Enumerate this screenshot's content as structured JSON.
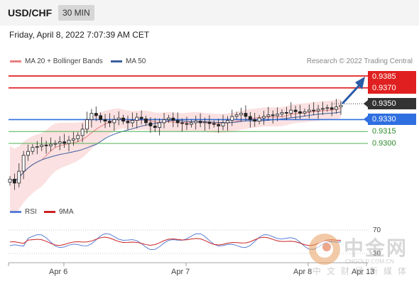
{
  "header": {
    "pair": "USD/CHF",
    "timeframe": "30 MIN"
  },
  "datetime": "Friday, April 8, 2022 7:07:39 AM CET",
  "legend": {
    "bollinger_label": "MA 20 + Bollinger Bands",
    "ma50_label": "MA 50",
    "research": "Research © 2022 Trading Central"
  },
  "colors": {
    "resistance": "#e02020",
    "current": "#333333",
    "pivot": "#2f6fe0",
    "support": "#4caf50",
    "ma20": "#e88080",
    "ma50": "#3a5fa0",
    "rsi": "#5b7fd6",
    "rsi_ma": "#cc2222"
  },
  "levels": {
    "r2": "0.9385",
    "r1": "0.9370",
    "last": "0.9350",
    "pivot": "0.9330",
    "s1": "0.9315",
    "s2": "0.9300"
  },
  "rsi": {
    "label": "RSI",
    "ma_label": "9MA",
    "level_70": "70",
    "level_30": "30"
  },
  "xaxis": {
    "labels": [
      "Apr 6",
      "Apr 7",
      "Apr 8",
      "Apr 13"
    ]
  },
  "watermark": {
    "cn": "中金网",
    "url": "CNGOLD.COM.CN",
    "sub": "中文财经新媒体",
    "logo": "cngold-logo-icon"
  },
  "chart_data": {
    "type": "line",
    "title": "",
    "ylabel": "",
    "ylim": [
      0.924,
      0.9395
    ],
    "y_levels": [
      0.9385,
      0.937,
      0.935,
      0.933,
      0.9315,
      0.93
    ],
    "x_labels": [
      "Apr 6",
      "Apr 7",
      "Apr 8",
      "Apr 13"
    ],
    "series": [
      {
        "values": [
          0.9255,
          0.925,
          0.9265,
          0.9285,
          0.929,
          0.9295,
          0.9296,
          0.9298,
          0.9297,
          0.9299,
          0.93,
          0.9302,
          0.93,
          0.9304,
          0.9306,
          0.931,
          0.9318,
          0.933,
          0.9338,
          0.9335,
          0.933,
          0.9328,
          0.9326,
          0.933,
          0.9332,
          0.9328,
          0.9326,
          0.9329,
          0.9333,
          0.9331,
          0.9326,
          0.9322,
          0.932,
          0.9326,
          0.933,
          0.9332,
          0.9329,
          0.9326,
          0.9325,
          0.9324,
          0.9326,
          0.9328,
          0.9326,
          0.9327,
          0.9325,
          0.9324,
          0.9322,
          0.9326,
          0.9329,
          0.9334,
          0.9336,
          0.9338,
          0.9334,
          0.933,
          0.9328,
          0.9332,
          0.9334,
          0.9336,
          0.9335,
          0.9337,
          0.9339,
          0.9338,
          0.9342,
          0.934,
          0.9338,
          0.934,
          0.9342,
          0.9341,
          0.9343,
          0.9344,
          0.9345,
          0.9343,
          0.9346,
          0.9348
        ]
      }
    ]
  }
}
